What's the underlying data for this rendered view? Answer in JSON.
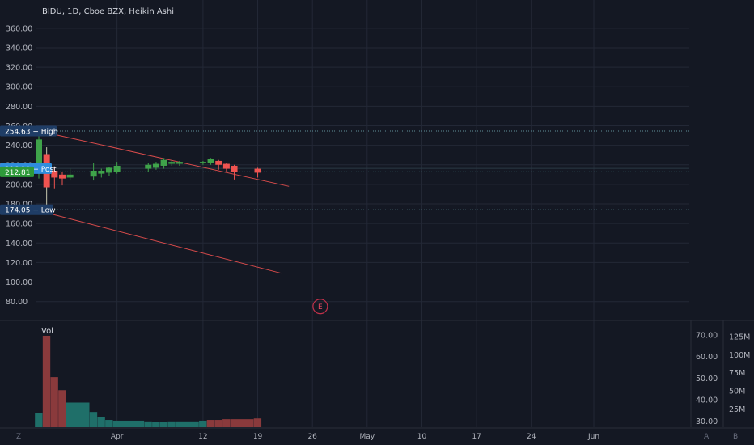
{
  "header": {
    "title": "BIDU, 1D, Cboe BZX, Heikin Ashi"
  },
  "colors": {
    "background": "#141823",
    "grid": "#232836",
    "axis_text": "#b2b5be",
    "up": "#26a69a",
    "up_candle": "#3fa34a",
    "down": "#ef5350",
    "trendline": "#d84b4b",
    "label_dark": "#1f3d66",
    "label_post": "#2f8ddc",
    "label_red": "#e65757",
    "label_green": "#2e9a3a"
  },
  "chart_data": [
    {
      "type": "candlestick",
      "title": "BIDU, 1D, Cboe BZX, Heikin Ashi",
      "x_ticks": [
        "Apr",
        "12",
        "19",
        "26",
        "May",
        "10",
        "17",
        "24",
        "Jun"
      ],
      "y_ticks": [
        "360.00",
        "340.00",
        "320.00",
        "300.00",
        "280.00",
        "260.00",
        "240.00",
        "220.00",
        "200.00",
        "180.00",
        "160.00",
        "140.00",
        "120.00",
        "100.00",
        "80.00"
      ],
      "ylim": [
        64,
        364
      ],
      "date_range": [
        "2021-03-22",
        "2021-06-07"
      ],
      "candles": [
        {
          "date": "2021-03-22",
          "open": 220,
          "high": 254.63,
          "low": 206,
          "close": 246
        },
        {
          "date": "2021-03-23",
          "open": 231,
          "high": 238,
          "low": 178,
          "close": 197
        },
        {
          "date": "2021-03-24",
          "open": 214,
          "high": 217,
          "low": 196,
          "close": 207
        },
        {
          "date": "2021-03-25",
          "open": 210,
          "high": 213,
          "low": 199,
          "close": 206
        },
        {
          "date": "2021-03-26",
          "open": 207,
          "high": 216,
          "low": 204,
          "close": 210
        },
        {
          "date": "2021-03-29",
          "open": 208,
          "high": 222,
          "low": 204,
          "close": 214
        },
        {
          "date": "2021-03-30",
          "open": 211,
          "high": 216,
          "low": 207,
          "close": 214
        },
        {
          "date": "2021-03-31",
          "open": 212,
          "high": 218,
          "low": 209,
          "close": 217
        },
        {
          "date": "2021-04-01",
          "open": 213,
          "high": 223,
          "low": 211,
          "close": 219
        },
        {
          "date": "2021-04-05",
          "open": 216,
          "high": 222,
          "low": 213,
          "close": 220
        },
        {
          "date": "2021-04-06",
          "open": 217,
          "high": 223,
          "low": 215,
          "close": 221
        },
        {
          "date": "2021-04-07",
          "open": 219,
          "high": 227,
          "low": 216,
          "close": 225
        },
        {
          "date": "2021-04-08",
          "open": 221,
          "high": 225,
          "low": 219,
          "close": 223
        },
        {
          "date": "2021-04-09",
          "open": 221,
          "high": 224,
          "low": 219,
          "close": 223
        },
        {
          "date": "2021-04-12",
          "open": 222,
          "high": 224,
          "low": 220,
          "close": 223
        },
        {
          "date": "2021-04-13",
          "open": 222,
          "high": 227,
          "low": 220,
          "close": 226
        },
        {
          "date": "2021-04-14",
          "open": 224,
          "high": 225,
          "low": 215,
          "close": 220
        },
        {
          "date": "2021-04-15",
          "open": 221,
          "high": 222,
          "low": 213,
          "close": 216
        },
        {
          "date": "2021-04-16",
          "open": 219,
          "high": 220,
          "low": 205,
          "close": 213
        },
        {
          "date": "2021-04-19",
          "open": 216,
          "high": 217,
          "low": 207,
          "close": 212
        }
      ],
      "price_labels": [
        {
          "value": 254.63,
          "text": "254.63",
          "suffix": "High",
          "style": "dark",
          "line": "dotted"
        },
        {
          "value": 216.56,
          "text": "216.56",
          "suffix": "",
          "style": "red",
          "line": "none"
        },
        {
          "value": 216.19,
          "text": "216.19",
          "suffix": "Post",
          "style": "post",
          "line": "none"
        },
        {
          "value": 212.81,
          "text": "212.81",
          "suffix": "",
          "style": "green",
          "line": "dotted"
        },
        {
          "value": 174.05,
          "text": "174.05",
          "suffix": "Low",
          "style": "dark",
          "line": "dotted"
        }
      ],
      "trendlines": [
        {
          "from": {
            "date": "2021-03-22",
            "value": 254.63
          },
          "to": {
            "date": "2021-04-23",
            "value": 198
          }
        },
        {
          "from": {
            "date": "2021-03-22",
            "value": 173
          },
          "to": {
            "date": "2021-04-22",
            "value": 109
          }
        }
      ],
      "annotations": [
        {
          "date": "2021-04-27",
          "value": 75,
          "text": "E"
        }
      ]
    },
    {
      "type": "bar",
      "series_label": "Vol",
      "left_ticks": [
        "70.00",
        "60.00",
        "50.00",
        "40.00",
        "30.00"
      ],
      "left_range": [
        28,
        73
      ],
      "right_ticks": [
        "125M",
        "100M",
        "75M",
        "50M",
        "25M"
      ],
      "volume_max": 136,
      "values_millions": [
        20,
        126,
        69,
        51,
        34,
        21,
        14,
        10,
        9,
        8,
        7,
        7,
        8,
        8,
        9,
        10,
        10,
        11,
        11,
        12
      ],
      "colors_by_bar": [
        "up",
        "down",
        "down",
        "down",
        "up",
        "up",
        "up",
        "up",
        "up",
        "up",
        "up",
        "up",
        "up",
        "up",
        "up",
        "down",
        "down",
        "down",
        "down",
        "down"
      ]
    }
  ],
  "bottom_axis": {
    "left_button": "Z",
    "right_buttons": [
      "A",
      "B"
    ]
  }
}
